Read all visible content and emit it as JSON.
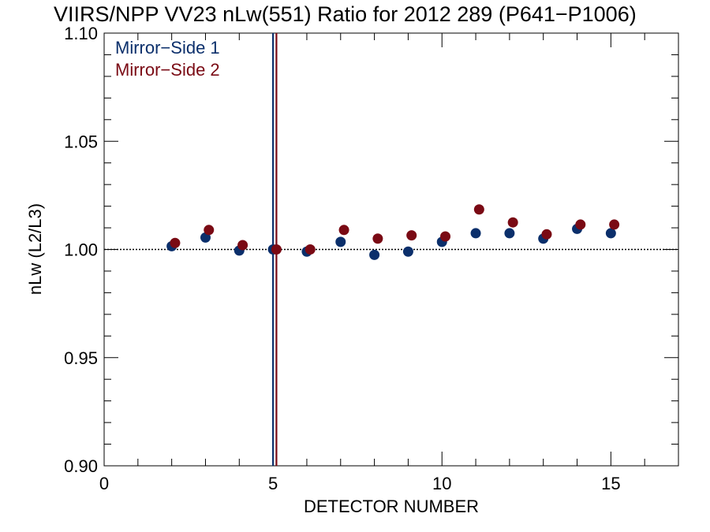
{
  "chart_data": {
    "type": "scatter",
    "title": "VIIRS/NPP VV23 nLw(551) Ratio for 2012 289 (P641−P1006)",
    "xlabel": "DETECTOR NUMBER",
    "ylabel": "nLw (L2/L3)",
    "xlim": [
      0,
      17
    ],
    "ylim": [
      0.9,
      1.1
    ],
    "x_ticks": [
      0,
      5,
      10,
      15
    ],
    "x_tick_labels": [
      "0",
      "5",
      "10",
      "15"
    ],
    "y_ticks": [
      0.9,
      0.95,
      1.0,
      1.05,
      1.1
    ],
    "y_tick_labels": [
      "0.90",
      "0.95",
      "1.00",
      "1.05",
      "1.10"
    ],
    "reference_line_y": 1.0,
    "vertical_lines": [
      {
        "x": 5.0,
        "color": "#0b2f6b"
      },
      {
        "x": 5.1,
        "color": "#7a0a14"
      }
    ],
    "legend_position": "top-left",
    "series": [
      {
        "name": "Mirror−Side 1",
        "color": "#0b2f6b",
        "x": [
          2,
          3,
          4,
          5,
          6,
          7,
          8,
          9,
          10,
          11,
          12,
          13,
          14,
          15
        ],
        "y": [
          1.0015,
          1.0055,
          0.9995,
          1.0,
          0.999,
          1.0035,
          0.9975,
          0.999,
          1.0035,
          1.0075,
          1.0075,
          1.005,
          1.0095,
          1.0075
        ]
      },
      {
        "name": "Mirror−Side 2",
        "color": "#7a0a14",
        "x": [
          2.1,
          3.1,
          4.1,
          5.1,
          6.1,
          7.1,
          8.1,
          9.1,
          10.1,
          11.1,
          12.1,
          13.1,
          14.1,
          15.1
        ],
        "y": [
          1.003,
          1.009,
          1.002,
          1.0,
          1.0,
          1.009,
          1.005,
          1.0065,
          1.006,
          1.0185,
          1.0125,
          1.007,
          1.0115,
          1.0115
        ]
      }
    ]
  }
}
